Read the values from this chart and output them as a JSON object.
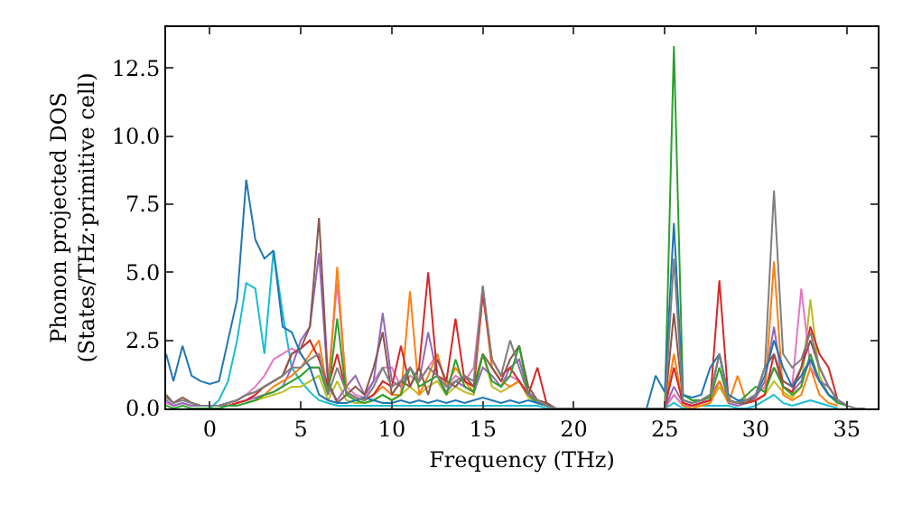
{
  "chart_data": {
    "type": "line",
    "xlabel": "Frequency (THz)",
    "ylabel": "Phonon projected DOS\n(States/THz·primitive cell)",
    "x": [
      -2.4,
      -2,
      -1.5,
      -1,
      -0.5,
      0,
      0.5,
      1,
      1.5,
      2,
      2.5,
      3,
      3.5,
      4,
      4.5,
      5,
      5.5,
      6,
      6.5,
      7,
      7.5,
      8,
      8.5,
      9,
      9.5,
      10,
      10.5,
      11,
      11.5,
      12,
      12.5,
      13,
      13.5,
      14,
      14.5,
      15,
      15.5,
      16,
      16.5,
      17,
      17.5,
      18,
      18.5,
      19,
      19.5,
      20,
      20.5,
      21,
      21.5,
      22,
      22.5,
      23,
      23.5,
      24,
      24.5,
      25,
      25.5,
      26,
      26.5,
      27,
      27.5,
      28,
      28.5,
      29,
      29.5,
      30,
      30.5,
      31,
      31.5,
      32,
      32.5,
      33,
      33.5,
      34,
      34.5,
      35,
      35.5,
      36
    ],
    "xlim": [
      -2.4,
      36.7
    ],
    "ylim": [
      0,
      14
    ],
    "xticks": [
      0,
      5,
      10,
      15,
      20,
      25,
      30,
      35
    ],
    "yticks": [
      {
        "value": 0,
        "label": "0.0"
      },
      {
        "value": 2.5,
        "label": "2.5"
      },
      {
        "value": 5,
        "label": "5.0"
      },
      {
        "value": 7.5,
        "label": "7.5"
      },
      {
        "value": 10,
        "label": "10.0"
      },
      {
        "value": 12.5,
        "label": "12.5"
      }
    ],
    "grid": false,
    "marker": "none",
    "line_style": "solid",
    "series": [
      {
        "color": "#17becf",
        "values": [
          null,
          null,
          null,
          null,
          null,
          0,
          0.3,
          1.0,
          2.5,
          4.6,
          4.4,
          2.0,
          5.8,
          3.5,
          1.5,
          1.0,
          0.6,
          0.3,
          0.2,
          0.1,
          0.1,
          0.1,
          0.1,
          0.1,
          0.1,
          0.1,
          0.1,
          0.1,
          0.1,
          0.1,
          0.1,
          0.1,
          0.1,
          0.1,
          0.1,
          0.1,
          0.1,
          0.1,
          0.1,
          0.1,
          0.1,
          0.1,
          0,
          0,
          0,
          0,
          0,
          0,
          0,
          0,
          0,
          0,
          0,
          0,
          0,
          0,
          0.2,
          0,
          0.1,
          0.1,
          0.1,
          0.1,
          0.1,
          0,
          0,
          0.1,
          0.3,
          0.5,
          0.2,
          0.1,
          0.2,
          0.3,
          0.2,
          0.1,
          0,
          null,
          null,
          null
        ]
      },
      {
        "color": "#bcbd22",
        "values": [
          null,
          null,
          null,
          null,
          null,
          null,
          null,
          null,
          null,
          0.2,
          0.3,
          0.4,
          0.5,
          0.6,
          0.8,
          0.8,
          1.0,
          1.2,
          0.3,
          1.0,
          0.3,
          0.2,
          0.2,
          0.3,
          0.5,
          0.3,
          0.5,
          0.8,
          0.5,
          0.8,
          1.0,
          0.5,
          0.8,
          0.6,
          0.5,
          2.0,
          0.8,
          0.6,
          0.8,
          1.0,
          0.4,
          0.2,
          0.1,
          0,
          0,
          0,
          0,
          0,
          0,
          0,
          0,
          0,
          0,
          0,
          0,
          0,
          0.5,
          0.1,
          0.1,
          0.1,
          0.2,
          0.8,
          0.2,
          0.1,
          0.2,
          0.3,
          0.5,
          1.0,
          0.6,
          0.4,
          0.8,
          4.0,
          1.2,
          0.5,
          0.2,
          null,
          null,
          null
        ]
      },
      {
        "color": "#e377c2",
        "values": [
          0.2,
          0.1,
          0.2,
          0.1,
          0.1,
          0.1,
          0.1,
          0.2,
          0.3,
          0.5,
          0.8,
          1.2,
          1.8,
          2.0,
          2.2,
          2.0,
          1.5,
          1.5,
          1.0,
          4.6,
          0.8,
          0.5,
          0.4,
          1.0,
          1.5,
          1.5,
          0.8,
          1.2,
          1.0,
          1.5,
          2.0,
          0.8,
          1.2,
          1.0,
          1.5,
          4.5,
          1.5,
          1.0,
          1.2,
          1.0,
          0.5,
          0.3,
          0.1,
          0,
          0,
          0,
          0,
          0,
          0,
          0,
          0,
          0,
          0,
          0,
          0,
          0,
          0.5,
          0.1,
          0.1,
          0.2,
          0.5,
          1.0,
          0.3,
          0.2,
          0.3,
          0.5,
          0.8,
          1.5,
          1.0,
          0.8,
          4.4,
          1.5,
          1.0,
          0.5,
          0.2,
          null,
          null,
          null
        ]
      },
      {
        "color": "#9467bd",
        "values": [
          0.3,
          0.1,
          0.2,
          0.1,
          0.1,
          0.1,
          0.1,
          0.1,
          0.2,
          0.3,
          0.4,
          0.5,
          0.6,
          0.8,
          1.5,
          2.5,
          3.0,
          5.7,
          0.8,
          0.3,
          0.8,
          1.2,
          0.5,
          1.0,
          3.5,
          1.0,
          0.8,
          1.5,
          1.0,
          2.8,
          1.2,
          0.6,
          1.0,
          0.8,
          0.6,
          1.5,
          1.2,
          0.8,
          1.5,
          1.8,
          0.6,
          0.3,
          0.2,
          0,
          0,
          0,
          0,
          0,
          0,
          0,
          0,
          0,
          0,
          0,
          0,
          0,
          0.8,
          0.2,
          0.1,
          0.2,
          0.3,
          1.0,
          0.2,
          0.1,
          0.2,
          0.4,
          1.0,
          3.0,
          0.8,
          0.6,
          1.0,
          1.8,
          1.0,
          0.8,
          0.3,
          0.1,
          null,
          null
        ]
      },
      {
        "color": "#ff7f0e",
        "values": [
          null,
          null,
          null,
          null,
          null,
          null,
          null,
          null,
          null,
          null,
          0.3,
          0.5,
          0.8,
          1.0,
          1.2,
          1.5,
          2.0,
          2.5,
          0.5,
          5.2,
          0.6,
          0.4,
          0.3,
          0.5,
          0.8,
          0.5,
          0.5,
          4.3,
          0.5,
          1.2,
          2.0,
          0.8,
          1.5,
          1.0,
          0.6,
          4.3,
          1.5,
          1.0,
          0.8,
          1.0,
          0.5,
          0.3,
          0.1,
          0,
          0,
          0,
          0,
          0,
          0,
          0,
          0,
          0,
          0,
          0,
          0,
          0,
          2.0,
          0.1,
          0,
          0.1,
          0.2,
          1.0,
          0.2,
          1.2,
          0.2,
          0.3,
          0.5,
          5.4,
          0.5,
          0.3,
          0.5,
          1.5,
          0.5,
          0.2,
          0.1,
          null,
          null,
          null
        ]
      },
      {
        "color": "#d62728",
        "values": [
          null,
          null,
          null,
          null,
          null,
          null,
          null,
          0.1,
          0.2,
          0.3,
          0.5,
          0.8,
          1.0,
          1.2,
          2.0,
          2.2,
          2.5,
          1.8,
          0.8,
          2.0,
          0.6,
          0.4,
          0.3,
          0.5,
          1.0,
          0.8,
          2.3,
          0.8,
          1.5,
          5.0,
          1.2,
          1.0,
          3.3,
          1.0,
          0.8,
          4.2,
          1.8,
          1.2,
          1.5,
          1.0,
          0.5,
          1.5,
          0.2,
          0,
          0,
          0,
          0,
          0,
          0,
          0,
          0,
          0,
          0,
          0,
          0,
          0,
          1.5,
          0.2,
          0.1,
          0.2,
          0.3,
          4.7,
          0.3,
          0.2,
          0.2,
          0.3,
          0.5,
          2.0,
          0.8,
          0.6,
          1.5,
          3.0,
          2.0,
          1.5,
          0.3,
          0.1,
          null,
          null
        ]
      },
      {
        "color": "#8c564b",
        "values": [
          0.5,
          0.2,
          0.4,
          0.2,
          0.1,
          0.1,
          0.1,
          0.2,
          0.3,
          0.5,
          0.6,
          0.8,
          1.0,
          1.2,
          2.0,
          2.2,
          3.0,
          7.0,
          1.0,
          0.2,
          0.5,
          0.8,
          0.5,
          1.5,
          2.8,
          0.5,
          1.0,
          0.8,
          1.5,
          0.5,
          1.8,
          1.0,
          0.8,
          1.2,
          0.8,
          2.0,
          1.5,
          1.0,
          1.8,
          2.3,
          0.8,
          0.3,
          0.2,
          0,
          0,
          0,
          0,
          0,
          0,
          0,
          0,
          0,
          0,
          0,
          0,
          0,
          3.5,
          0.3,
          0.2,
          0.3,
          0.5,
          2.0,
          0.3,
          0.2,
          0.2,
          0.5,
          1.5,
          2.0,
          1.0,
          0.8,
          1.5,
          2.5,
          1.5,
          0.8,
          0.3,
          0.1,
          null,
          null
        ]
      },
      {
        "color": "#2ca02c",
        "values": [
          0.1,
          0,
          0.1,
          0,
          0,
          0,
          0,
          0.1,
          0.1,
          0.2,
          0.3,
          0.5,
          0.6,
          0.8,
          1.0,
          1.2,
          1.5,
          1.5,
          0.5,
          3.3,
          0.5,
          0.3,
          0.2,
          0.3,
          0.5,
          0.3,
          0.5,
          1.5,
          0.8,
          1.0,
          1.2,
          0.5,
          1.8,
          0.8,
          0.6,
          2.0,
          1.0,
          0.8,
          1.2,
          2.3,
          0.5,
          0.2,
          0.1,
          0,
          0,
          0,
          0,
          0,
          0,
          0,
          0,
          0,
          0,
          0,
          0,
          0,
          13.3,
          0.5,
          0.3,
          0.3,
          0.4,
          1.5,
          0.3,
          0.2,
          0.5,
          0.8,
          0.6,
          1.5,
          0.8,
          0.5,
          0.8,
          2.0,
          1.0,
          0.5,
          0.2,
          0.1,
          null,
          null
        ]
      },
      {
        "color": "#1f77b4",
        "values": [
          2.0,
          1.0,
          2.3,
          1.2,
          1.0,
          0.9,
          1.0,
          2.5,
          4.0,
          8.4,
          6.2,
          5.5,
          5.8,
          3.0,
          2.8,
          2.0,
          1.5,
          0.5,
          0.3,
          0.2,
          0.2,
          0.3,
          0.4,
          0.3,
          0.2,
          0.2,
          0.3,
          0.2,
          0.3,
          0.2,
          0.3,
          0.2,
          0.3,
          0.2,
          0.3,
          0.4,
          0.3,
          0.2,
          0.3,
          0.2,
          0.3,
          0.2,
          0.1,
          0,
          0,
          0,
          0,
          0,
          0,
          0,
          0,
          0,
          0,
          0,
          1.2,
          0.6,
          6.8,
          0.5,
          0.4,
          0.5,
          1.5,
          2.0,
          0.5,
          0.3,
          0.3,
          0.5,
          1.2,
          2.5,
          1.5,
          0.8,
          1.2,
          1.8,
          1.0,
          0.5,
          0.3,
          0.1,
          null,
          null
        ]
      },
      {
        "color": "#7f7f7f",
        "values": [
          0.4,
          0.2,
          0.3,
          0.2,
          0.1,
          0.1,
          0.1,
          0.2,
          0.3,
          0.5,
          0.6,
          0.8,
          1.0,
          1.2,
          1.5,
          1.5,
          1.8,
          2.0,
          0.5,
          1.5,
          0.6,
          0.4,
          0.3,
          0.8,
          1.5,
          0.8,
          1.0,
          1.5,
          1.0,
          1.5,
          1.2,
          0.8,
          1.0,
          1.2,
          1.0,
          4.5,
          1.8,
          1.2,
          2.5,
          1.5,
          0.5,
          0.3,
          0.1,
          0,
          0,
          0,
          0,
          0,
          0,
          0,
          0,
          0,
          0,
          0,
          0,
          0,
          5.5,
          0.3,
          0.2,
          0.3,
          0.5,
          2.0,
          0.3,
          0.2,
          0.3,
          0.5,
          1.5,
          8.0,
          2.0,
          1.5,
          1.8,
          2.8,
          1.5,
          0.8,
          0.3,
          0.1,
          0,
          0
        ]
      }
    ]
  }
}
